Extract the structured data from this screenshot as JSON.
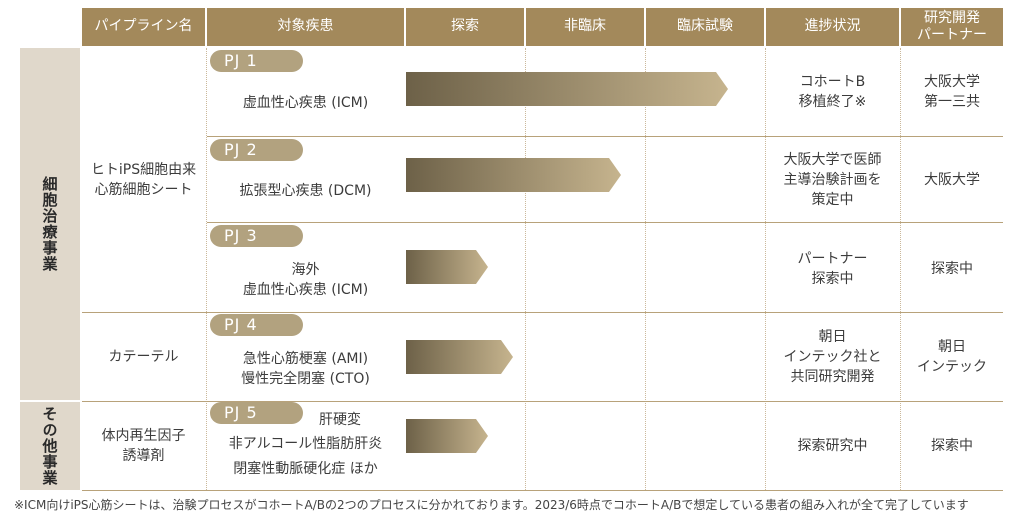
{
  "headers": {
    "pipeline": "パイプライン名",
    "disease": "対象疾患",
    "exploration": "探索",
    "nonclinical": "非臨床",
    "clinical": "臨床試験",
    "progress": "進捗状況",
    "partner_line1": "研究開発",
    "partner_line2": "パートナー"
  },
  "segments": [
    {
      "label": "細胞治療事業"
    },
    {
      "label": "その他事業"
    }
  ],
  "pipelines": [
    {
      "line1": "ヒトiPS細胞由来",
      "line2": "心筋細胞シート"
    },
    {
      "line1": "カテーテル",
      "line2": ""
    },
    {
      "line1": "体内再生因子",
      "line2": "誘導剤"
    }
  ],
  "projects": [
    {
      "badge": "PJ 1",
      "disease": [
        "虚血性心疾患 (ICM)"
      ],
      "progress": [
        "コホートB",
        "移植終了※"
      ],
      "partner": [
        "大阪大学",
        "第一三共"
      ],
      "stage_fraction": 0.9
    },
    {
      "badge": "PJ 2",
      "disease": [
        "拡張型心疾患 (DCM)"
      ],
      "progress": [
        "大阪大学で医師",
        "主導治験計画を",
        "策定中"
      ],
      "partner": [
        "大阪大学"
      ],
      "stage_fraction": 0.6
    },
    {
      "badge": "PJ 3",
      "disease": [
        "海外",
        "虚血性心疾患 (ICM)"
      ],
      "progress": [
        "パートナー",
        "探索中"
      ],
      "partner": [
        "探索中"
      ],
      "stage_fraction": 0.23
    },
    {
      "badge": "PJ 4",
      "disease": [
        "急性心筋梗塞 (AMI)",
        "慢性完全閉塞 (CTO)"
      ],
      "progress": [
        "朝日",
        "インテック社と",
        "共同研究開発"
      ],
      "partner": [
        "朝日",
        "インテック"
      ],
      "stage_fraction": 0.3
    },
    {
      "badge": "PJ 5",
      "disease": [
        "肝硬変",
        "非アルコール性脂肪肝炎",
        "閉塞性動脈硬化症 ほか"
      ],
      "progress": [
        "探索研究中"
      ],
      "partner": [
        "探索中"
      ],
      "stage_fraction": 0.23
    }
  ],
  "footnote": "※ICM向けiPS心筋シートは、治験プロセスがコホートA/Bの2つのプロセスに分かれております。2023/6時点でコホートA/Bで想定している患者の組み入れが全て完了しています",
  "colors": {
    "header": "#a3895b",
    "segment_bg": "#e0d8cb",
    "badge": "#b2a27f",
    "bar_dark": "#6d6148",
    "bar_light": "#c6b48e"
  }
}
